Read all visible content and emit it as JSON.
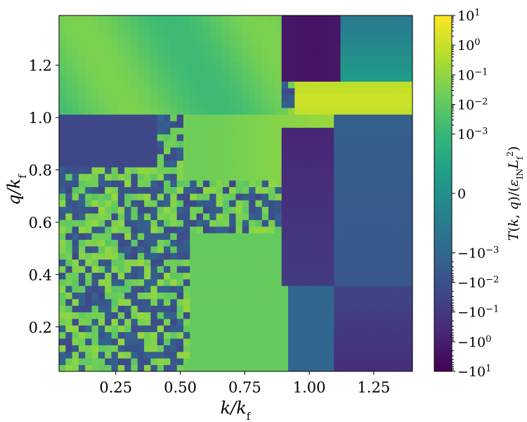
{
  "chart_data": {
    "type": "heatmap",
    "title": "",
    "xlabel": "k/k_f",
    "ylabel": "q/k_f",
    "xlim": [
      0.03,
      1.4
    ],
    "ylim": [
      0.03,
      1.39
    ],
    "xticks": [
      {
        "value": 0.25,
        "label": "0.25"
      },
      {
        "value": 0.5,
        "label": "0.50"
      },
      {
        "value": 0.75,
        "label": "0.75"
      },
      {
        "value": 1.0,
        "label": "1.00"
      },
      {
        "value": 1.25,
        "label": "1.25"
      }
    ],
    "yticks": [
      {
        "value": 0.2,
        "label": "0.2"
      },
      {
        "value": 0.4,
        "label": "0.4"
      },
      {
        "value": 0.6,
        "label": "0.6"
      },
      {
        "value": 0.8,
        "label": "0.8"
      },
      {
        "value": 1.0,
        "label": "1.0"
      },
      {
        "value": 1.2,
        "label": "1.2"
      }
    ],
    "grid_size": [
      54,
      54
    ],
    "colorbar": {
      "label": "T(k,q)/(ε_IN L_f^2)",
      "scale": "symlog",
      "range": [
        "-10^1",
        "10^1"
      ],
      "colormap": "viridis",
      "ticks": [
        {
          "t": 1.0,
          "label": "10^1"
        },
        {
          "t": 0.917,
          "label": "10^0"
        },
        {
          "t": 0.833,
          "label": "10^-1"
        },
        {
          "t": 0.75,
          "label": "10^-2"
        },
        {
          "t": 0.667,
          "label": "10^-3"
        },
        {
          "t": 0.5,
          "label": "0"
        },
        {
          "t": 0.333,
          "label": "-10^-3"
        },
        {
          "t": 0.25,
          "label": "-10^-2"
        },
        {
          "t": 0.167,
          "label": "-10^-1"
        },
        {
          "t": 0.083,
          "label": "-10^0"
        },
        {
          "t": 0.0,
          "label": "-10^1"
        }
      ]
    },
    "regions": [
      {
        "k": [
          0.9,
          1.4
        ],
        "q": [
          1.0,
          1.14
        ],
        "value": 0.95
      },
      {
        "k": [
          0.03,
          0.4
        ],
        "q": [
          0.8,
          0.96
        ],
        "value": 0.2
      },
      {
        "k": [
          1.1,
          1.4
        ],
        "q": [
          0.03,
          0.3
        ],
        "value": 0.15
      },
      {
        "k": [
          0.3,
          0.95
        ],
        "q": [
          0.03,
          0.55
        ],
        "value": 0.75
      },
      {
        "k": [
          0.03,
          0.85
        ],
        "q": [
          1.0,
          1.39
        ],
        "value": 0.75
      }
    ],
    "colors": {
      "viridis": [
        "#440154",
        "#482878",
        "#3e4989",
        "#31688e",
        "#26828e",
        "#1f9e89",
        "#35b779",
        "#6ece58",
        "#b5de2b",
        "#fde725"
      ],
      "background": "#ffffff"
    }
  }
}
